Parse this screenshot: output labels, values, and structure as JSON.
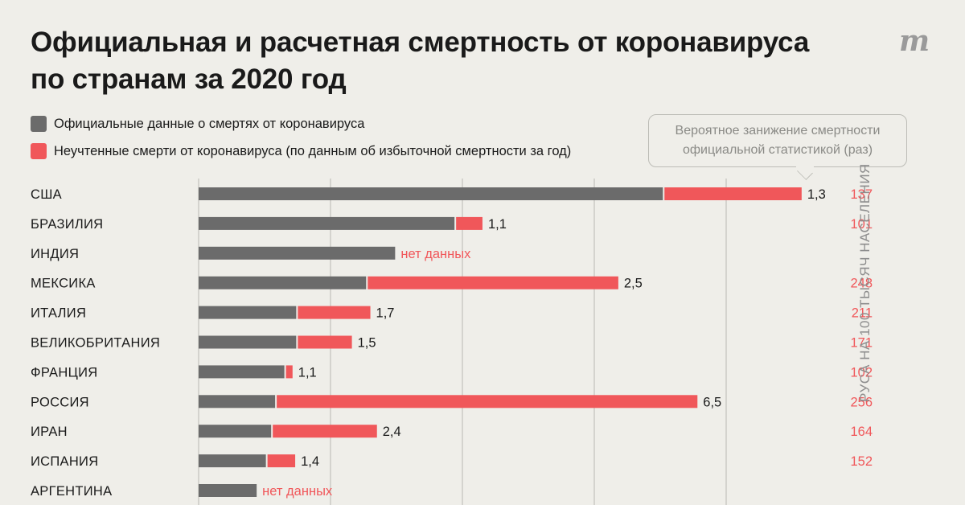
{
  "title": "Официальная и расчетная смертность от коронавируса по странам за 2020 год",
  "logo": "m",
  "legend": [
    {
      "label": "Официальные данные о смертях от коронавируса",
      "color": "#6b6b6b"
    },
    {
      "label": "Неучтенные смерти от коронавируса (по данным об избыточной смертности за год)",
      "color": "#f0575a"
    }
  ],
  "callout": {
    "line1": "Вероятное занижение смертности",
    "line2": "официальной статистикой (раз)"
  },
  "side_label": "РУСА НА 100 ТЫСЯЧ НАСЕЛЕНИЯ",
  "colors": {
    "official": "#6b6b6b",
    "unaccounted": "#f0575a",
    "ratio_text": "#1a1a1a",
    "total_text": "#f0575a"
  },
  "chart_data": {
    "type": "bar",
    "orientation": "horizontal",
    "stacked": true,
    "categories": [
      "США",
      "БРАЗИЛИЯ",
      "ИНДИЯ",
      "МЕКСИКА",
      "ИТАЛИЯ",
      "ВЕЛИКОБРИТАНИЯ",
      "ФРАНЦИЯ",
      "РОССИЯ",
      "ИРАН",
      "ИСПАНИЯ",
      "АРГЕНТИНА"
    ],
    "series": [
      {
        "name": "Официальные данные о смертях от коронавируса",
        "values": [
          352000,
          194000,
          149000,
          127000,
          74000,
          74000,
          65000,
          58000,
          55000,
          51000,
          44000
        ]
      },
      {
        "name": "Неучтенные смерти от коронавируса (по данным об избыточной смертности за год)",
        "values": [
          104000,
          20000,
          null,
          190000,
          55000,
          41000,
          5000,
          319000,
          79000,
          21000,
          null
        ]
      }
    ],
    "ratio_labels": [
      "1,3",
      "1,1",
      "нет данных",
      "2,5",
      "1,7",
      "1,5",
      "1,1",
      "6,5",
      "2,4",
      "1,4",
      "нет данных"
    ],
    "ratio_has_data": [
      true,
      true,
      false,
      true,
      true,
      true,
      true,
      true,
      true,
      true,
      false
    ],
    "totals_per_100k": [
      "137",
      "101",
      "",
      "248",
      "211",
      "171",
      "102",
      "256",
      "164",
      "152",
      ""
    ],
    "xlim": [
      0,
      500000
    ],
    "grid": true
  }
}
